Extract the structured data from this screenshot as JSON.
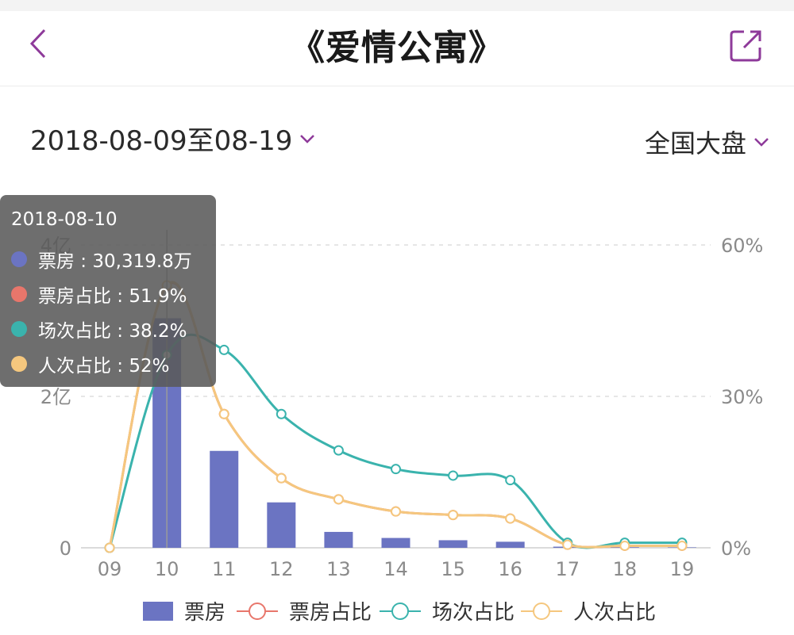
{
  "header": {
    "title": "《爱情公寓》",
    "back_icon": "chevron-left-icon",
    "share_icon": "share-icon"
  },
  "filters": {
    "date_range": "2018-08-09至08-19",
    "region": "全国大盘"
  },
  "colors": {
    "accent": "#8e3a9a",
    "box_office": "#6b74c2",
    "box_office_share": "#e8766b",
    "screening_share": "#3ab3ad",
    "admission_share": "#f5c77e"
  },
  "tooltip": {
    "date": "2018-08-10",
    "rows": [
      {
        "text": "票房 : 30,319.8万",
        "color": "#6b74c2"
      },
      {
        "text": "票房占比 : 51.9%",
        "color": "#e8766b"
      },
      {
        "text": "场次占比 : 38.2%",
        "color": "#3ab3ad"
      },
      {
        "text": "人次占比 : 52%",
        "color": "#f5c77e"
      }
    ]
  },
  "chart_data": {
    "type": "bar",
    "categories": [
      "09",
      "10",
      "11",
      "12",
      "13",
      "14",
      "15",
      "16",
      "17",
      "18",
      "19"
    ],
    "left_axis": {
      "ticks": [
        "0",
        "2亿",
        "4亿"
      ],
      "tick_values": [
        0,
        20000,
        40000
      ],
      "ylim": [
        0,
        40000
      ],
      "unit": "万"
    },
    "right_axis": {
      "ticks": [
        "0%",
        "30%",
        "60%"
      ],
      "tick_values": [
        0,
        30,
        60
      ],
      "ylim": [
        0,
        60
      ]
    },
    "series": [
      {
        "name": "票房",
        "type": "bar",
        "axis": "left",
        "values": [
          0,
          30319.8,
          12800,
          6000,
          2100,
          1300,
          1000,
          800,
          150,
          80,
          60
        ]
      },
      {
        "name": "票房占比",
        "type": "line",
        "axis": "right",
        "values": [
          0,
          51.9,
          26.5,
          13.8,
          9.6,
          7.2,
          6.5,
          5.8,
          0.6,
          0.4,
          0.4
        ]
      },
      {
        "name": "场次占比",
        "type": "line",
        "axis": "right",
        "values": [
          0,
          38.2,
          39.2,
          26.5,
          19.3,
          15.6,
          14.3,
          13.4,
          1.0,
          1.0,
          1.0
        ]
      },
      {
        "name": "人次占比",
        "type": "line",
        "axis": "right",
        "values": [
          0,
          52,
          26.5,
          13.8,
          9.6,
          7.2,
          6.5,
          5.8,
          0.6,
          0.4,
          0.4
        ]
      }
    ],
    "grid": true,
    "legend": "bottom"
  }
}
